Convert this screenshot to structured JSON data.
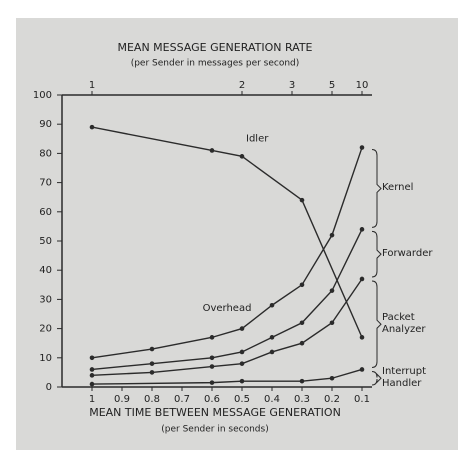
{
  "chart_data": {
    "type": "line",
    "top_axis_title": "MEAN MESSAGE GENERATION RATE",
    "top_axis_subtitle": "(per Sender in messages per second)",
    "xlabel": "MEAN TIME BETWEEN MESSAGE GENERATION",
    "xlabel_subtitle": "(per Sender in seconds)",
    "xlim": [
      1.1,
      0.1
    ],
    "xticks": [
      1,
      0.9,
      0.8,
      0.7,
      0.6,
      0.5,
      0.4,
      0.3,
      0.2,
      0.1
    ],
    "x2scale": "reciprocal",
    "x2ticks": [
      1,
      2,
      3,
      5,
      10
    ],
    "ylim": [
      0,
      100
    ],
    "yticks": [
      0,
      10,
      20,
      30,
      40,
      50,
      60,
      70,
      80,
      90,
      100
    ],
    "color": "#2b2b2b",
    "series": [
      {
        "name": "Idler",
        "x": [
          1,
          0.6,
          0.5,
          0.3,
          0.1
        ],
        "values": [
          89,
          81,
          79,
          64,
          17
        ],
        "label_at": "inline"
      },
      {
        "name": "Kernel",
        "x": [
          1,
          0.8,
          0.6,
          0.5,
          0.4,
          0.3,
          0.2,
          0.1
        ],
        "values": [
          10,
          13,
          17,
          20,
          28,
          35,
          52,
          82
        ],
        "label_at": "brace"
      },
      {
        "name": "Forwarder",
        "x": [
          1,
          0.8,
          0.6,
          0.5,
          0.4,
          0.3,
          0.2,
          0.1
        ],
        "values": [
          6,
          8,
          10,
          12,
          17,
          22,
          33,
          54
        ],
        "label_at": "brace"
      },
      {
        "name": "Packet Analyzer",
        "x": [
          1,
          0.8,
          0.6,
          0.5,
          0.4,
          0.3,
          0.2,
          0.1
        ],
        "values": [
          4,
          5,
          7,
          8,
          12,
          15,
          22,
          37
        ],
        "label_at": "brace"
      },
      {
        "name": "Interrupt Handler",
        "x": [
          1,
          0.6,
          0.5,
          0.3,
          0.2,
          0.1
        ],
        "values": [
          1,
          1.5,
          2,
          2,
          3,
          6
        ],
        "label_at": "brace"
      }
    ],
    "annotations": [
      {
        "text": "Overhead",
        "x": 0.55,
        "y": 27
      }
    ]
  }
}
